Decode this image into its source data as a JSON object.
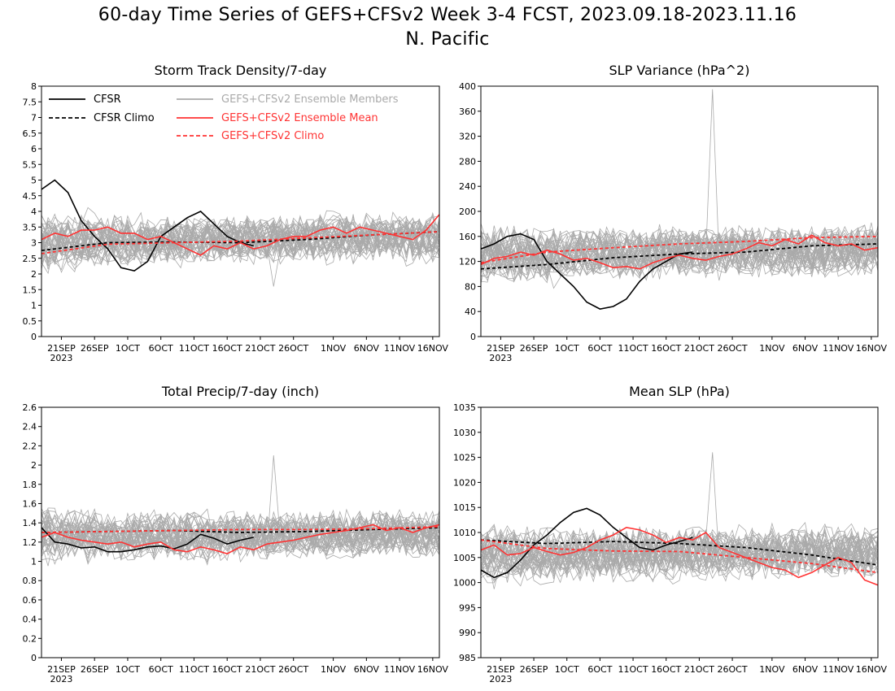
{
  "title": {
    "line1": "60-day Time Series of GEFS+CFSv2 Week 3-4 FCST, 2023.09.18-2023.11.16",
    "line2": "N. Pacific"
  },
  "legend": {
    "cfsr": "CFSR",
    "cfsr_climo": "CFSR Climo",
    "members": "GEFS+CFSv2 Ensemble Members",
    "ens_mean": "GEFS+CFSv2 Ensemble Mean",
    "gefs_climo": "GEFS+CFSv2 Climo"
  },
  "colors": {
    "cfsr": "#000000",
    "members": "#aaaaaa",
    "ens_mean": "#ff3333",
    "gefs_climo": "#ff3333"
  },
  "x_ticks": [
    "21SEP",
    "26SEP",
    "1OCT",
    "6OCT",
    "11OCT",
    "16OCT",
    "21OCT",
    "26OCT",
    "1NOV",
    "6NOV",
    "11NOV",
    "16NOV"
  ],
  "x_tick_days": [
    3,
    8,
    13,
    18,
    23,
    28,
    33,
    38,
    44,
    49,
    54,
    59
  ],
  "x_year": "2023",
  "chart_data": [
    {
      "type": "line",
      "title": "Storm Track Density/7-day",
      "xlabel": "",
      "ylabel": "",
      "ylim": [
        0,
        8
      ],
      "yticks": [
        "0",
        "0.5",
        "1",
        "1.5",
        "2",
        "2.5",
        "3",
        "3.5",
        "4",
        "4.5",
        "5",
        "5.5",
        "6",
        "6.5",
        "7",
        "7.5",
        "8"
      ],
      "legend_position": "top",
      "series": [
        {
          "name": "CFSR",
          "style": "solid",
          "color": "#000000",
          "x": [
            0,
            2,
            4,
            6,
            8,
            10,
            12,
            14,
            16,
            18,
            20,
            22,
            24,
            26,
            28,
            30,
            32
          ],
          "y": [
            4.7,
            5.0,
            4.6,
            3.7,
            3.2,
            2.8,
            2.2,
            2.1,
            2.4,
            3.2,
            3.5,
            3.8,
            4.0,
            3.6,
            3.2,
            3.0,
            2.9
          ]
        },
        {
          "name": "CFSR Climo",
          "style": "dashed",
          "color": "#000000",
          "x": [
            0,
            10,
            20,
            30,
            40,
            50,
            60
          ],
          "y": [
            2.75,
            3.0,
            3.02,
            3.0,
            3.1,
            3.25,
            3.35
          ]
        },
        {
          "name": "GEFS+CFSv2 Ensemble Mean",
          "style": "solid",
          "color": "#ff3333",
          "x": [
            0,
            2,
            4,
            6,
            8,
            10,
            12,
            14,
            16,
            18,
            20,
            22,
            24,
            26,
            28,
            30,
            32,
            34,
            36,
            38,
            40,
            42,
            44,
            46,
            48,
            50,
            52,
            54,
            56,
            58,
            60
          ],
          "y": [
            3.1,
            3.3,
            3.2,
            3.4,
            3.4,
            3.5,
            3.3,
            3.3,
            3.1,
            3.2,
            3.0,
            2.8,
            2.6,
            2.9,
            2.8,
            3.0,
            2.8,
            2.9,
            3.1,
            3.2,
            3.2,
            3.4,
            3.5,
            3.3,
            3.5,
            3.4,
            3.3,
            3.2,
            3.1,
            3.4,
            3.9
          ]
        },
        {
          "name": "GEFS+CFSv2 Climo",
          "style": "dashed",
          "color": "#ff3333",
          "x": [
            0,
            10,
            20,
            30,
            40,
            50,
            60
          ],
          "y": [
            2.65,
            2.95,
            3.0,
            3.05,
            3.15,
            3.25,
            3.35
          ]
        }
      ],
      "members": {
        "name": "GEFS+CFSv2 Ensemble Members",
        "count": 40,
        "center": 3.05,
        "spread": 0.75,
        "spike": 1.6
      }
    },
    {
      "type": "line",
      "title": "SLP Variance (hPa^2)",
      "xlabel": "",
      "ylabel": "",
      "ylim": [
        0,
        400
      ],
      "yticks": [
        "0",
        "40",
        "80",
        "120",
        "160",
        "200",
        "240",
        "280",
        "320",
        "360",
        "400"
      ],
      "series": [
        {
          "name": "CFSR",
          "style": "solid",
          "color": "#000000",
          "x": [
            0,
            2,
            4,
            6,
            8,
            10,
            12,
            14,
            16,
            18,
            20,
            22,
            24,
            26,
            28,
            30,
            32
          ],
          "y": [
            140,
            148,
            160,
            164,
            155,
            120,
            100,
            80,
            55,
            44,
            48,
            60,
            88,
            108,
            120,
            132,
            135
          ]
        },
        {
          "name": "CFSR Climo",
          "style": "dashed",
          "color": "#000000",
          "x": [
            0,
            10,
            20,
            30,
            40,
            50,
            60
          ],
          "y": [
            108,
            115,
            126,
            132,
            135,
            145,
            148
          ]
        },
        {
          "name": "GEFS+CFSv2 Ensemble Mean",
          "style": "solid",
          "color": "#ff3333",
          "x": [
            0,
            2,
            4,
            6,
            8,
            10,
            12,
            14,
            16,
            18,
            20,
            22,
            24,
            26,
            28,
            30,
            32,
            34,
            36,
            38,
            40,
            42,
            44,
            46,
            48,
            50,
            52,
            54,
            56,
            58,
            60
          ],
          "y": [
            115,
            125,
            128,
            135,
            130,
            138,
            132,
            122,
            125,
            118,
            110,
            112,
            108,
            118,
            125,
            130,
            125,
            122,
            128,
            132,
            140,
            150,
            145,
            155,
            148,
            162,
            150,
            145,
            148,
            138,
            142
          ]
        },
        {
          "name": "GEFS+CFSv2 Climo",
          "style": "dashed",
          "color": "#ff3333",
          "x": [
            0,
            10,
            20,
            30,
            40,
            50,
            60
          ],
          "y": [
            118,
            135,
            142,
            148,
            152,
            158,
            160
          ]
        }
      ],
      "members": {
        "name": "GEFS+CFSv2 Ensemble Members",
        "count": 40,
        "center": 132,
        "spread": 40,
        "spike": 395
      }
    },
    {
      "type": "line",
      "title": "Total Precip/7-day (inch)",
      "xlabel": "",
      "ylabel": "",
      "ylim": [
        0,
        2.6
      ],
      "yticks": [
        "0",
        "0.2",
        "0.4",
        "0.6",
        "0.8",
        "1",
        "1.2",
        "1.4",
        "1.6",
        "1.8",
        "2",
        "2.2",
        "2.4",
        "2.6"
      ],
      "series": [
        {
          "name": "CFSR",
          "style": "solid",
          "color": "#000000",
          "x": [
            0,
            2,
            4,
            6,
            8,
            10,
            12,
            14,
            16,
            18,
            20,
            22,
            24,
            26,
            28,
            30,
            32
          ],
          "y": [
            1.35,
            1.2,
            1.18,
            1.14,
            1.15,
            1.1,
            1.1,
            1.12,
            1.15,
            1.16,
            1.13,
            1.18,
            1.28,
            1.24,
            1.18,
            1.22,
            1.25
          ]
        },
        {
          "name": "CFSR Climo",
          "style": "dashed",
          "color": "#000000",
          "x": [
            0,
            10,
            20,
            30,
            40,
            50,
            60
          ],
          "y": [
            1.3,
            1.31,
            1.32,
            1.3,
            1.31,
            1.33,
            1.35
          ]
        },
        {
          "name": "GEFS+CFSv2 Ensemble Mean",
          "style": "solid",
          "color": "#ff3333",
          "x": [
            0,
            2,
            4,
            6,
            8,
            10,
            12,
            14,
            16,
            18,
            20,
            22,
            24,
            26,
            28,
            30,
            32,
            34,
            36,
            38,
            40,
            42,
            44,
            46,
            48,
            50,
            52,
            54,
            56,
            58,
            60
          ],
          "y": [
            1.25,
            1.3,
            1.25,
            1.22,
            1.2,
            1.18,
            1.2,
            1.15,
            1.18,
            1.2,
            1.12,
            1.1,
            1.15,
            1.12,
            1.08,
            1.15,
            1.12,
            1.18,
            1.2,
            1.22,
            1.25,
            1.28,
            1.3,
            1.32,
            1.35,
            1.38,
            1.32,
            1.35,
            1.3,
            1.35,
            1.38
          ]
        },
        {
          "name": "GEFS+CFSv2 Climo",
          "style": "dashed",
          "color": "#ff3333",
          "x": [
            0,
            10,
            20,
            30,
            40,
            50,
            60
          ],
          "y": [
            1.3,
            1.31,
            1.32,
            1.33,
            1.33,
            1.34,
            1.36
          ]
        }
      ],
      "members": {
        "name": "GEFS+CFSv2 Ensemble Members",
        "count": 40,
        "center": 1.25,
        "spread": 0.24,
        "spike": 2.1
      }
    },
    {
      "type": "line",
      "title": "Mean SLP (hPa)",
      "xlabel": "",
      "ylabel": "",
      "ylim": [
        985,
        1035
      ],
      "yticks": [
        "985",
        "990",
        "995",
        "1000",
        "1005",
        "1010",
        "1015",
        "1020",
        "1025",
        "1030",
        "1035"
      ],
      "series": [
        {
          "name": "CFSR",
          "style": "solid",
          "color": "#000000",
          "x": [
            0,
            2,
            4,
            6,
            8,
            10,
            12,
            14,
            16,
            18,
            20,
            22,
            24,
            26,
            28,
            30,
            32
          ],
          "y": [
            1002.5,
            1001,
            1002,
            1004.5,
            1007.5,
            1009.5,
            1012,
            1014,
            1014.8,
            1013.5,
            1011,
            1009,
            1007,
            1006.5,
            1007.5,
            1008.2,
            1009
          ]
        },
        {
          "name": "CFSR Climo",
          "style": "dashed",
          "color": "#000000",
          "x": [
            0,
            10,
            20,
            30,
            40,
            50,
            60
          ],
          "y": [
            1008.5,
            1007.8,
            1008.2,
            1007.8,
            1007,
            1005.5,
            1003.5
          ]
        },
        {
          "name": "GEFS+CFSv2 Ensemble Mean",
          "style": "solid",
          "color": "#ff3333",
          "x": [
            0,
            2,
            4,
            6,
            8,
            10,
            12,
            14,
            16,
            18,
            20,
            22,
            24,
            26,
            28,
            30,
            32,
            34,
            36,
            38,
            40,
            42,
            44,
            46,
            48,
            50,
            52,
            54,
            56,
            58,
            60
          ],
          "y": [
            1006.5,
            1007.5,
            1005.5,
            1005.8,
            1007,
            1006.2,
            1005.5,
            1006,
            1007,
            1008.5,
            1009.5,
            1011,
            1010.5,
            1009.5,
            1008,
            1009,
            1008.5,
            1010,
            1007,
            1006,
            1005,
            1004,
            1003,
            1002.5,
            1001,
            1002,
            1003.5,
            1005,
            1004,
            1000.5,
            999.5
          ]
        },
        {
          "name": "GEFS+CFSv2 Climo",
          "style": "dashed",
          "color": "#ff3333",
          "x": [
            0,
            10,
            20,
            30,
            40,
            50,
            60
          ],
          "y": [
            1008.5,
            1006.8,
            1006.3,
            1006.2,
            1005,
            1003.8,
            1002
          ]
        }
      ],
      "members": {
        "name": "GEFS+CFSv2 Ensemble Members",
        "count": 40,
        "center": 1005.5,
        "spread": 5,
        "spike": 1026
      }
    }
  ]
}
